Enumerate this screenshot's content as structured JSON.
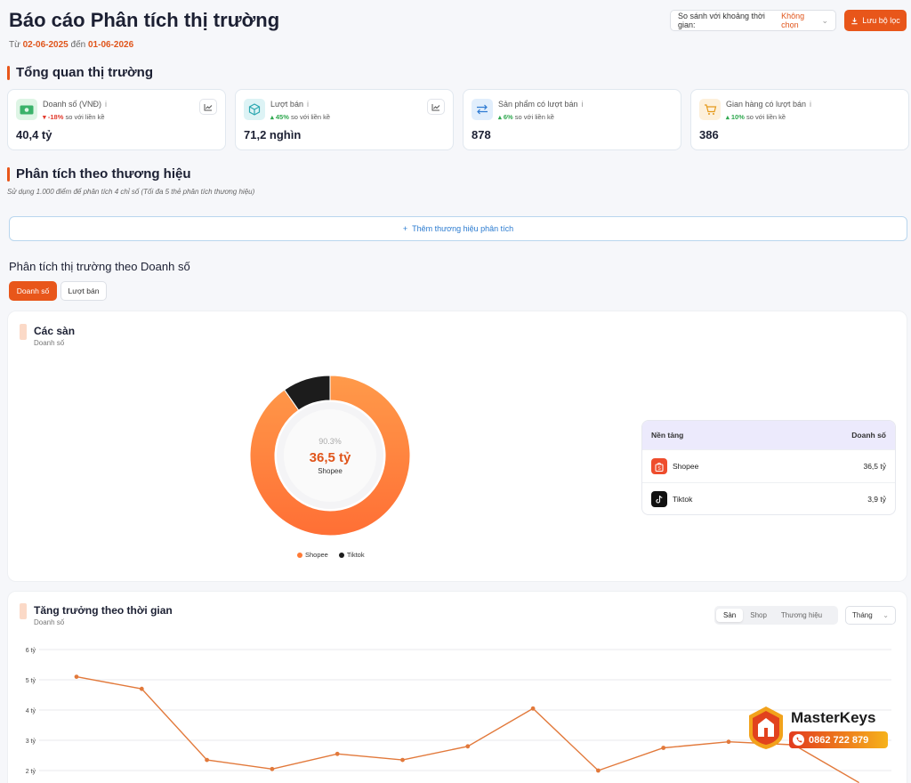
{
  "header": {
    "title": "Báo cáo Phân tích thị trường",
    "date_prefix": "Từ",
    "date_from": "02-06-2025",
    "date_sep": "đến",
    "date_to": "01-06-2026",
    "compare_label": "So sánh với khoảng thời gian:",
    "compare_value": "Không chọn",
    "save_label": "Lưu bộ lọc"
  },
  "overview": {
    "title": "Tổng quan thị trường",
    "cards": [
      {
        "label": "Doanh số (VNĐ)",
        "change": "-18%",
        "change_dir": "down",
        "change_suffix": "so với liền kề",
        "value": "40,4 tỷ",
        "icon": "money-icon"
      },
      {
        "label": "Lượt bán",
        "change": "45%",
        "change_dir": "up",
        "change_suffix": "so với liền kề",
        "value": "71,2 nghìn",
        "icon": "box-icon"
      },
      {
        "label": "Sản phẩm có lượt bán",
        "change": "6%",
        "change_dir": "up",
        "change_suffix": "so với liền kề",
        "value": "878",
        "icon": "arrows-icon"
      },
      {
        "label": "Gian hàng có lượt bán",
        "change": "10%",
        "change_dir": "up",
        "change_suffix": "so với liền kề",
        "value": "386",
        "icon": "cart-icon"
      }
    ]
  },
  "brand_analysis": {
    "title": "Phân tích theo thương hiệu",
    "note": "Sử dụng 1.000 điểm để phân tích 4 chỉ số (Tối đa 5 thẻ phân tích thương hiệu)",
    "add_label": "Thêm thương hiệu phân tích"
  },
  "market": {
    "title": "Phân tích thị trường theo Doanh số",
    "tabs": [
      "Doanh số",
      "Lượt bán"
    ]
  },
  "platforms_panel": {
    "title": "Các sàn",
    "subtitle": "Doanh số",
    "center_pct": "90.3%",
    "center_value": "36,5 tỷ",
    "center_name": "Shopee",
    "table_header": [
      "Nền tảng",
      "Doanh số"
    ],
    "rows": [
      {
        "name": "Shopee",
        "value": "36,5 tỷ"
      },
      {
        "name": "Tiktok",
        "value": "3,9 tỷ"
      }
    ]
  },
  "growth_panel": {
    "title": "Tăng trưởng theo thời gian",
    "subtitle": "Doanh số",
    "seg_tabs": [
      "Sàn",
      "Shop",
      "Thương hiệu"
    ],
    "period": "Tháng"
  },
  "brand": {
    "name": "MasterKeys",
    "phone": "0862 722 879"
  },
  "colors": {
    "accent": "#e8561a",
    "shopee": "#ff7a35",
    "tiktok": "#1c1c1c"
  },
  "chart_data": [
    {
      "type": "pie",
      "title": "",
      "categories": [
        "Shopee",
        "Tiktok"
      ],
      "values": [
        36.5,
        3.9
      ],
      "legend": "bottom"
    },
    {
      "type": "line",
      "title": "",
      "ylabel": "",
      "yticks": [
        "2 tỷ",
        "3 tỷ",
        "4 tỷ",
        "5 tỷ",
        "6 tỷ"
      ],
      "ylim": [
        1.6,
        6
      ],
      "x": [
        1,
        2,
        3,
        4,
        5,
        6,
        7,
        8,
        9,
        10,
        11,
        12,
        13
      ],
      "series": [
        {
          "values": [
            5.1,
            4.7,
            2.35,
            2.05,
            2.55,
            2.35,
            2.8,
            4.05,
            2.0,
            2.75,
            2.95,
            2.85,
            1.6
          ]
        }
      ],
      "grid": true
    }
  ]
}
